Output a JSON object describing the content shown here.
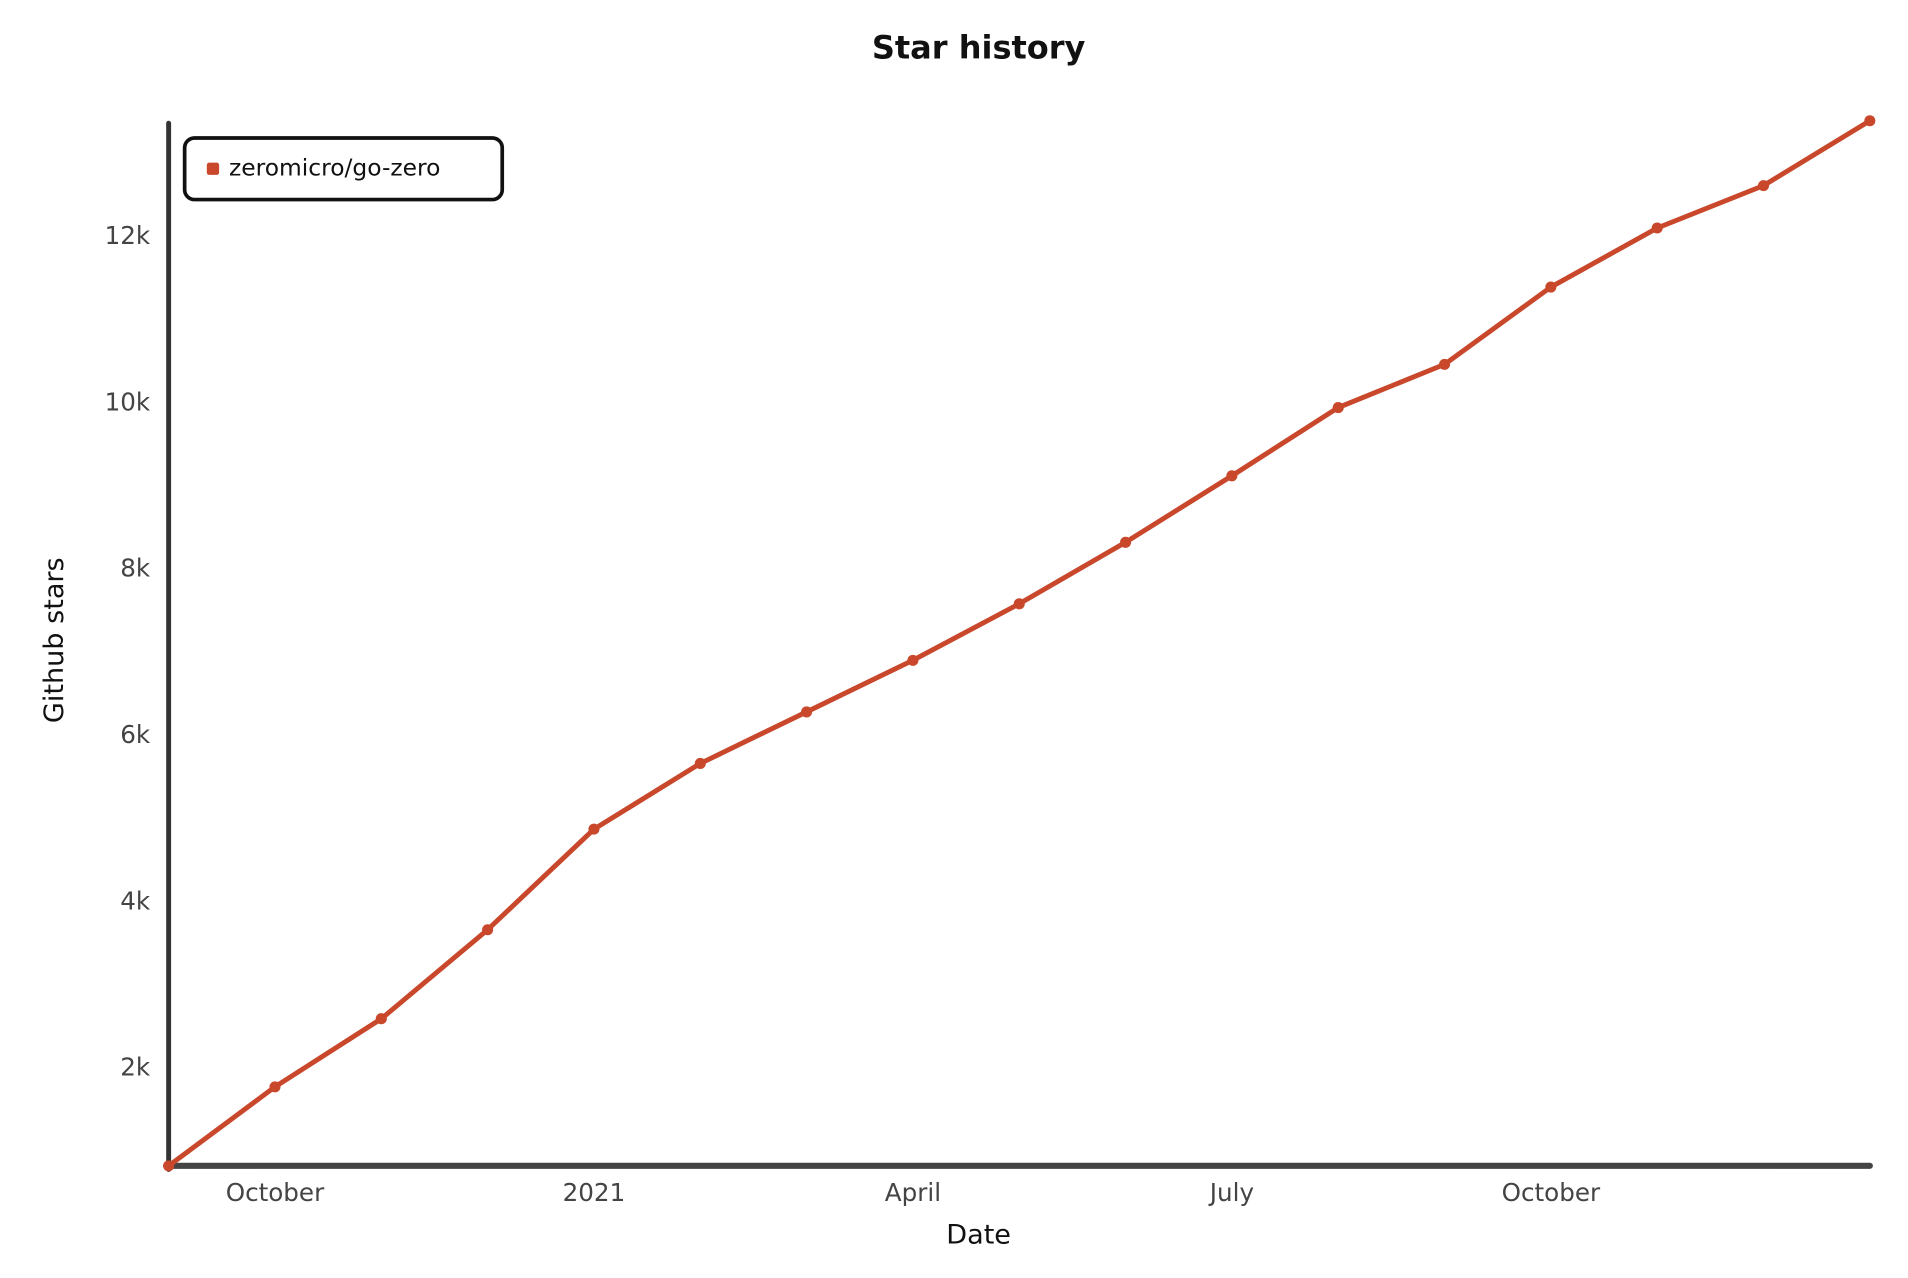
{
  "chart_data": {
    "type": "line",
    "title": "Star history",
    "x_label": "Date",
    "y_label": "Github stars",
    "x": [
      "2020-09",
      "2020-10",
      "2020-11",
      "2020-12",
      "2021-01",
      "2021-02",
      "2021-03",
      "2021-04",
      "2021-05",
      "2021-06",
      "2021-07",
      "2021-08",
      "2021-09",
      "2021-10",
      "2021-11",
      "2021-12",
      "2022-01"
    ],
    "series": [
      {
        "name": "zeromicro/go-zero",
        "color": "#c9472b",
        "values": [
          830,
          1780,
          2600,
          3670,
          4880,
          5670,
          6290,
          6910,
          7590,
          8330,
          9130,
          9950,
          10470,
          11400,
          12110,
          12620,
          13400
        ]
      }
    ],
    "xlim": [
      "2020-09",
      "2022-01"
    ],
    "xticks": [
      {
        "value": "2020-10",
        "label": "October"
      },
      {
        "value": "2021-01",
        "label": "2021"
      },
      {
        "value": "2021-04",
        "label": "April"
      },
      {
        "value": "2021-07",
        "label": "July"
      },
      {
        "value": "2021-10",
        "label": "October"
      }
    ],
    "ylim": [
      830,
      13400
    ],
    "yticks": [
      {
        "value": 2000,
        "label": "2k"
      },
      {
        "value": 4000,
        "label": "4k"
      },
      {
        "value": 6000,
        "label": "6k"
      },
      {
        "value": 8000,
        "label": "8k"
      },
      {
        "value": 10000,
        "label": "10k"
      },
      {
        "value": 12000,
        "label": "12k"
      }
    ],
    "legend": "upper left"
  }
}
